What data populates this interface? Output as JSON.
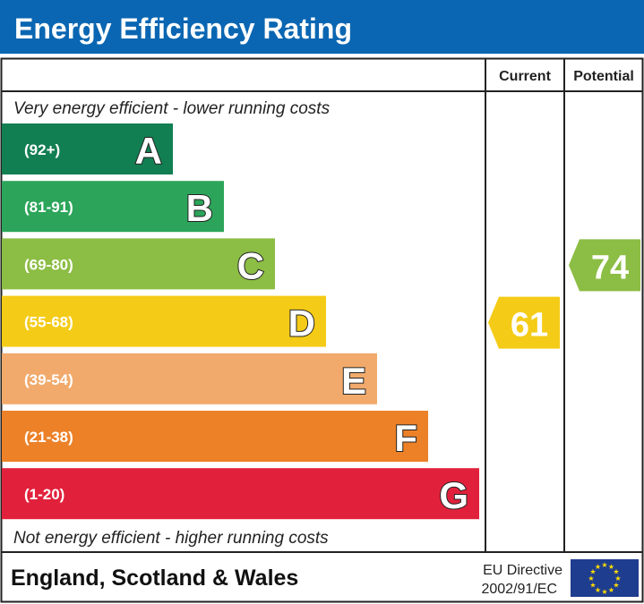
{
  "title": "Energy Efficiency Rating",
  "columns": {
    "current": "Current",
    "potential": "Potential"
  },
  "top_note": "Very energy efficient - lower running costs",
  "bottom_note": "Not energy efficient - higher running costs",
  "footer": {
    "region": "England, Scotland & Wales",
    "directive_line1": "EU Directive",
    "directive_line2": "2002/91/EC",
    "flag": "eu-flag-icon"
  },
  "colors": {
    "header": "#0a66b2",
    "text_on_bar": "#ffffff"
  },
  "chart_data": {
    "type": "bar",
    "bands": [
      {
        "letter": "A",
        "range": "(92+)",
        "color": "#127f52"
      },
      {
        "letter": "B",
        "range": "(81-91)",
        "color": "#2ca55a"
      },
      {
        "letter": "C",
        "range": "(69-80)",
        "color": "#8cbd44"
      },
      {
        "letter": "D",
        "range": "(55-68)",
        "color": "#f4cb17"
      },
      {
        "letter": "E",
        "range": "(39-54)",
        "color": "#f1aa6c"
      },
      {
        "letter": "F",
        "range": "(21-38)",
        "color": "#ec8128"
      },
      {
        "letter": "G",
        "range": "(1-20)",
        "color": "#e1213c"
      }
    ],
    "current": {
      "value": "61",
      "band": "D",
      "color": "#f4cb17"
    },
    "potential": {
      "value": "74",
      "band": "C",
      "color": "#8cbd44"
    }
  }
}
